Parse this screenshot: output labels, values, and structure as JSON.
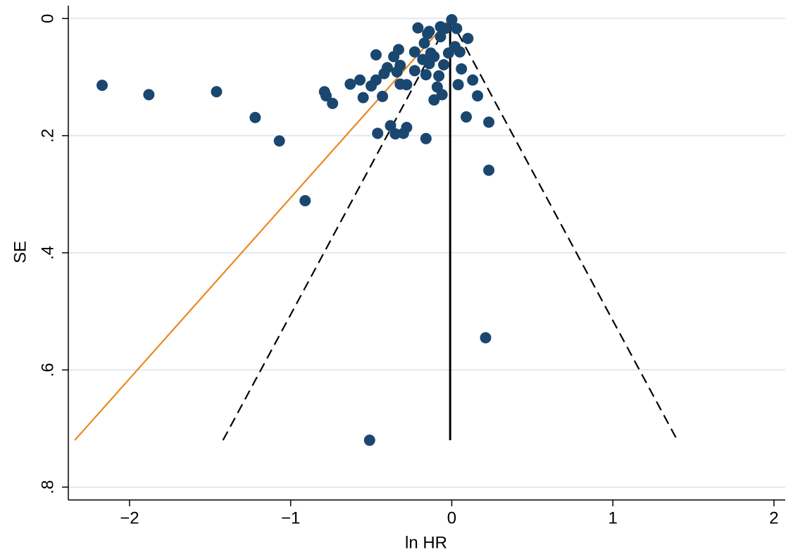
{
  "chart_data": {
    "type": "scatter",
    "x_label": "ln HR",
    "y_label": "SE",
    "xlim": [
      -2.38,
      2.07
    ],
    "ylim": [
      -0.022,
      0.822
    ],
    "y_inverted": true,
    "xticks": [
      {
        "value": -2,
        "label": "−2"
      },
      {
        "value": -1,
        "label": "−1"
      },
      0,
      1,
      2
    ],
    "yticks": [
      0,
      {
        "value": 0.2,
        "label": ".2"
      },
      {
        "value": 0.4,
        "label": ".4"
      },
      {
        "value": 0.6,
        "label": ".6"
      },
      {
        "value": 0.8,
        "label": ".8"
      }
    ],
    "grid": true,
    "grid_color": "#e1e9ed",
    "series": [
      {
        "color": "#1a476f",
        "x": [
          -2.17,
          -1.88,
          -1.46,
          -1.22,
          -1.07,
          -0.91,
          -0.79,
          -0.78,
          -0.74,
          -0.63,
          -0.57,
          -0.55,
          -0.5,
          -0.47,
          -0.47,
          -0.46,
          -0.43,
          -0.42,
          -0.4,
          -0.38,
          -0.36,
          -0.35,
          -0.34,
          -0.33,
          -0.32,
          -0.32,
          -0.3,
          -0.28,
          -0.28,
          -0.23,
          -0.23,
          -0.21,
          -0.18,
          -0.17,
          -0.16,
          -0.16,
          -0.15,
          -0.14,
          -0.14,
          -0.13,
          -0.11,
          -0.11,
          -0.09,
          -0.08,
          -0.07,
          -0.07,
          -0.06,
          -0.05,
          -0.04,
          -0.02,
          0.0,
          0.02,
          0.03,
          0.04,
          0.05,
          0.06,
          0.09,
          0.1,
          0.13,
          0.16,
          0.23,
          0.23,
          0.21,
          -0.51
        ],
        "values": [
          0.114,
          0.13,
          0.125,
          0.169,
          0.209,
          0.311,
          0.125,
          0.132,
          0.145,
          0.112,
          0.105,
          0.135,
          0.115,
          0.062,
          0.105,
          0.196,
          0.133,
          0.094,
          0.084,
          0.183,
          0.065,
          0.197,
          0.091,
          0.053,
          0.08,
          0.112,
          0.196,
          0.113,
          0.186,
          0.089,
          0.057,
          0.016,
          0.07,
          0.042,
          0.205,
          0.096,
          0.026,
          0.077,
          0.022,
          0.059,
          0.139,
          0.065,
          0.117,
          0.098,
          0.031,
          0.014,
          0.13,
          0.079,
          0.017,
          0.059,
          0.002,
          0.048,
          0.017,
          0.113,
          0.057,
          0.086,
          0.168,
          0.034,
          0.105,
          0.132,
          0.177,
          0.259,
          0.545,
          0.72
        ]
      }
    ],
    "lines": [
      {
        "color": "#000000",
        "dashed": false,
        "x": [
          -0.01,
          -0.01
        ],
        "values": [
          0,
          0.72
        ]
      },
      {
        "color": "#000000",
        "dashed": true,
        "x": [
          -1.42,
          -0.01,
          1.4
        ],
        "values": [
          0.72,
          0,
          0.72
        ]
      },
      {
        "color": "#e8891f",
        "dashed": false,
        "x": [
          -2.34,
          -0.01
        ],
        "values": [
          0.72,
          0
        ]
      }
    ]
  }
}
